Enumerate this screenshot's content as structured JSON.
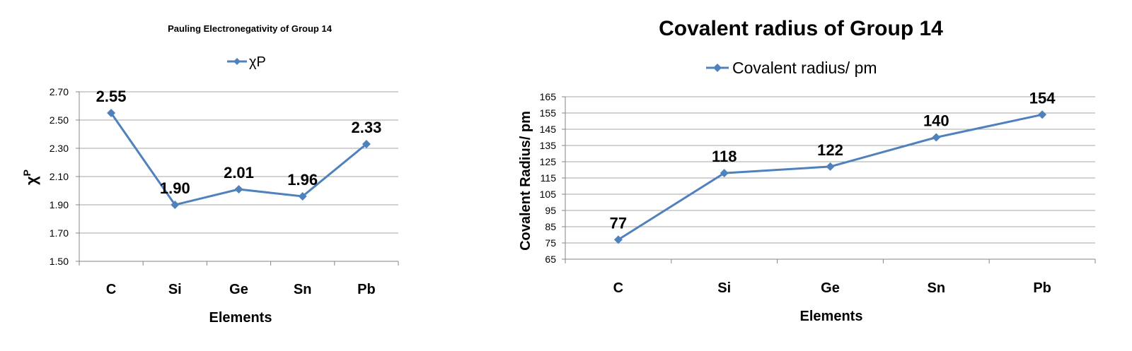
{
  "chart_data": [
    {
      "type": "line",
      "title": "Pauling Electronegativity of Group 14",
      "xlabel": "Elements",
      "ylabel": "χP",
      "ylabel_base": "χ",
      "ylabel_sup": "P",
      "categories": [
        "C",
        "Si",
        "Ge",
        "Sn",
        "Pb"
      ],
      "series": [
        {
          "name": "χP",
          "values": [
            2.55,
            1.9,
            2.01,
            1.96,
            2.33
          ],
          "data_labels": [
            "2.55",
            "1.90",
            "2.01",
            "1.96",
            "2.33"
          ]
        }
      ],
      "ylim": [
        1.5,
        2.7
      ],
      "yticks": [
        "1.50",
        "1.70",
        "1.90",
        "2.10",
        "2.30",
        "2.50",
        "2.70"
      ],
      "ytick_values": [
        1.5,
        1.7,
        1.9,
        2.1,
        2.3,
        2.5,
        2.7
      ],
      "grid": true,
      "legend_position": "top",
      "color": "#4F81BD",
      "grid_color": "#a6a6a6"
    },
    {
      "type": "line",
      "title": "Covalent radius of Group 14",
      "xlabel": "Elements",
      "ylabel": "Covalent Radius/ pm",
      "categories": [
        "C",
        "Si",
        "Ge",
        "Sn",
        "Pb"
      ],
      "series": [
        {
          "name": "Covalent radius/ pm",
          "values": [
            77,
            118,
            122,
            140,
            154
          ],
          "data_labels": [
            "77",
            "118",
            "122",
            "140",
            "154"
          ]
        }
      ],
      "ylim": [
        65,
        165
      ],
      "yticks": [
        "65",
        "75",
        "85",
        "95",
        "105",
        "115",
        "125",
        "135",
        "145",
        "155",
        "165"
      ],
      "ytick_values": [
        65,
        75,
        85,
        95,
        105,
        115,
        125,
        135,
        145,
        155,
        165
      ],
      "grid": true,
      "legend_position": "top",
      "color": "#4F81BD",
      "grid_color": "#a6a6a6"
    }
  ]
}
